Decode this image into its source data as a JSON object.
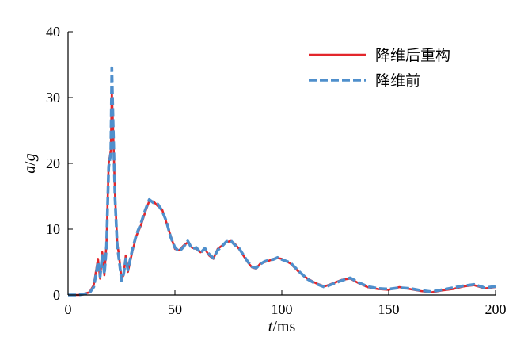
{
  "chart_data": {
    "type": "line",
    "title": "",
    "xlabel_var": "t",
    "xlabel_sep": "/",
    "xlabel_unit": "ms",
    "ylabel_var_a": "a",
    "ylabel_sep": "/",
    "ylabel_var_g": "g",
    "xlim": [
      0,
      200
    ],
    "ylim": [
      0,
      40
    ],
    "x_ticks": [
      0,
      50,
      100,
      150,
      200
    ],
    "y_ticks": [
      0,
      10,
      20,
      30,
      40
    ],
    "x_tick_labels": [
      "0",
      "50",
      "100",
      "150",
      "200"
    ],
    "y_tick_labels": [
      "0",
      "10",
      "20",
      "30",
      "40"
    ],
    "grid": false,
    "legend_position": "top-right",
    "series": [
      {
        "name": "降维后重构",
        "color": "#e3262b",
        "style": "solid",
        "x": [
          0,
          5,
          10,
          12,
          13,
          14,
          15,
          16,
          17,
          18,
          19,
          20,
          20.5,
          21,
          22,
          23,
          24,
          25,
          26,
          27,
          28,
          30,
          32,
          34,
          36,
          38,
          40,
          42,
          44,
          46,
          48,
          50,
          52,
          54,
          56,
          58,
          60,
          62,
          64,
          66,
          68,
          70,
          72,
          74,
          76,
          78,
          80,
          82,
          84,
          86,
          88,
          90,
          92,
          94,
          96,
          98,
          100,
          104,
          108,
          112,
          116,
          120,
          124,
          128,
          132,
          136,
          140,
          145,
          150,
          155,
          160,
          165,
          170,
          175,
          180,
          185,
          190,
          195,
          200
        ],
        "y": [
          0,
          0,
          0.4,
          1.5,
          3.5,
          5.5,
          2.5,
          6.5,
          3.0,
          8.0,
          20.0,
          22.0,
          31.0,
          26.0,
          15.0,
          8.0,
          5.5,
          2.5,
          3.0,
          6.0,
          3.5,
          6.5,
          9.0,
          10.5,
          12.5,
          14.3,
          14.2,
          13.5,
          13.0,
          11.0,
          9.0,
          7.0,
          6.8,
          7.5,
          8.0,
          7.2,
          7.0,
          6.5,
          7.0,
          6.0,
          5.5,
          7.0,
          7.5,
          8.0,
          8.2,
          7.8,
          7.0,
          6.0,
          5.0,
          4.2,
          4.0,
          4.8,
          5.0,
          5.2,
          5.5,
          5.6,
          5.5,
          4.8,
          3.5,
          2.5,
          1.8,
          1.3,
          1.8,
          2.3,
          2.5,
          1.8,
          1.2,
          0.9,
          0.8,
          1.2,
          0.9,
          0.6,
          0.4,
          0.7,
          0.9,
          1.3,
          1.5,
          1.0,
          1.2
        ]
      },
      {
        "name": "降维前",
        "color": "#4f8fcc",
        "style": "dashed",
        "x": [
          0,
          5,
          10,
          12,
          13,
          14,
          15,
          16,
          17,
          18,
          19,
          20,
          20.5,
          21,
          22,
          23,
          24,
          25,
          26,
          27,
          28,
          30,
          32,
          34,
          36,
          38,
          40,
          42,
          44,
          46,
          48,
          50,
          52,
          54,
          56,
          58,
          60,
          62,
          64,
          66,
          68,
          70,
          72,
          74,
          76,
          78,
          80,
          82,
          84,
          86,
          88,
          90,
          92,
          94,
          96,
          98,
          100,
          104,
          108,
          112,
          116,
          120,
          124,
          128,
          132,
          136,
          140,
          145,
          150,
          155,
          160,
          165,
          170,
          175,
          180,
          185,
          190,
          195,
          200
        ],
        "y": [
          0,
          0,
          0.3,
          1.2,
          3.0,
          5.0,
          2.8,
          6.0,
          3.2,
          7.5,
          19.5,
          21.5,
          34.5,
          27.0,
          14.5,
          7.5,
          5.0,
          2.2,
          3.2,
          5.5,
          3.8,
          6.8,
          9.2,
          10.8,
          12.8,
          14.5,
          14.0,
          13.8,
          12.8,
          11.2,
          8.8,
          7.2,
          6.6,
          7.3,
          8.2,
          7.0,
          7.2,
          6.4,
          7.1,
          6.2,
          5.6,
          6.8,
          7.4,
          8.1,
          8.3,
          7.6,
          7.1,
          6.1,
          5.1,
          4.3,
          4.1,
          4.7,
          5.1,
          5.3,
          5.4,
          5.7,
          5.4,
          4.9,
          3.6,
          2.4,
          1.7,
          1.2,
          1.7,
          2.2,
          2.6,
          1.9,
          1.3,
          1.0,
          0.9,
          1.1,
          1.0,
          0.7,
          0.5,
          0.8,
          1.1,
          1.4,
          1.6,
          1.1,
          1.3
        ]
      }
    ]
  }
}
